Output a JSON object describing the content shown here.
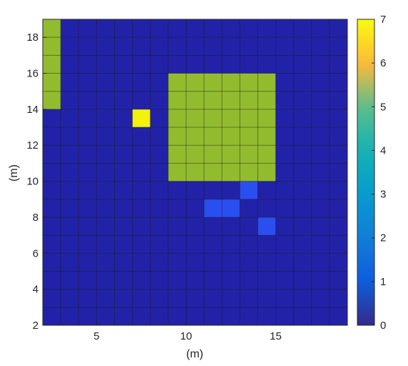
{
  "chart_data": {
    "type": "heatmap",
    "title": "",
    "xlabel": "(m)",
    "ylabel": "(m)",
    "xlim": [
      2,
      19
    ],
    "ylim": [
      2,
      19
    ],
    "cell_size": 1,
    "background_value": 0,
    "xticks": [
      5,
      10,
      15
    ],
    "yticks": [
      2,
      4,
      6,
      8,
      10,
      12,
      14,
      16,
      18
    ],
    "grid": true,
    "colormap": "parula",
    "colorbar": {
      "min": 0,
      "max": 7,
      "ticks": [
        0,
        1,
        2,
        3,
        4,
        5,
        6,
        7
      ]
    },
    "regions": [
      {
        "x": [
          2,
          3
        ],
        "y": [
          14,
          19
        ],
        "value": 5
      },
      {
        "x": [
          9,
          15
        ],
        "y": [
          10,
          16
        ],
        "value": 5
      },
      {
        "x": [
          7,
          8
        ],
        "y": [
          13,
          14
        ],
        "value": 7
      },
      {
        "x": [
          11,
          13
        ],
        "y": [
          8,
          9
        ],
        "value": 1
      },
      {
        "x": [
          13,
          14
        ],
        "y": [
          9,
          10
        ],
        "value": 1
      },
      {
        "x": [
          14,
          15
        ],
        "y": [
          7,
          8
        ],
        "value": 1
      }
    ]
  }
}
